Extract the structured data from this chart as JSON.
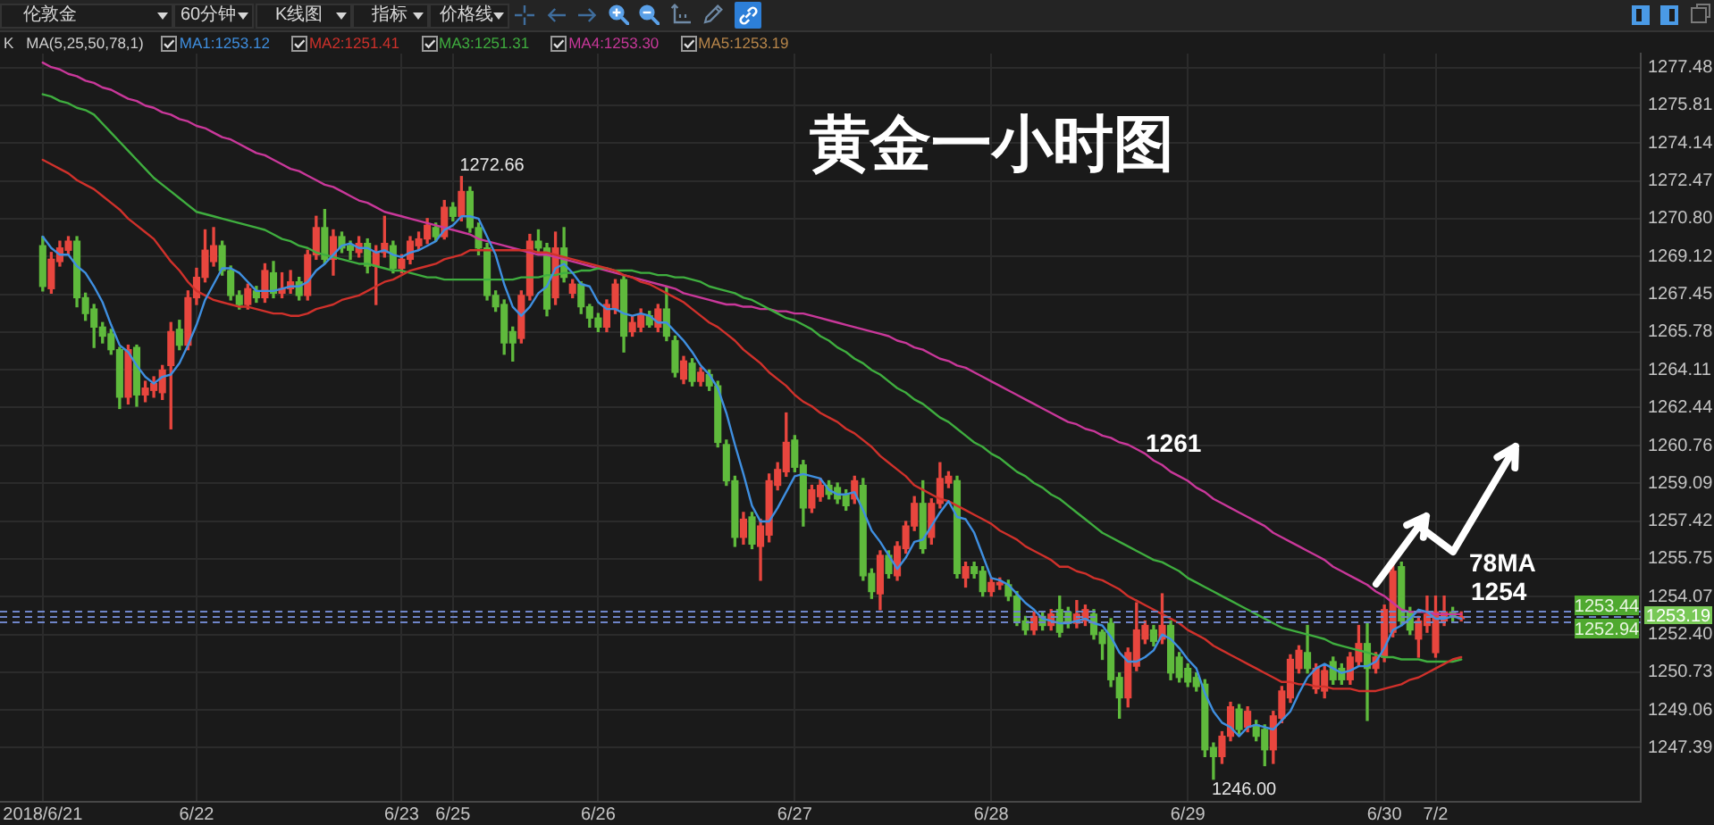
{
  "chart_data": {
    "type": "candlestick",
    "title": "黄金一小时图",
    "categories": [
      "2018/6/21",
      null,
      null,
      null,
      null,
      null,
      null,
      null,
      null,
      null,
      null,
      null,
      null,
      null,
      null,
      null,
      null,
      null,
      "6/22",
      null,
      null,
      null,
      null,
      null,
      null,
      null,
      null,
      null,
      null,
      null,
      null,
      null,
      null,
      null,
      null,
      null,
      null,
      null,
      null,
      null,
      null,
      null,
      "6/23",
      null,
      null,
      null,
      null,
      null,
      "6/25",
      null,
      null,
      null,
      null,
      null,
      null,
      null,
      null,
      null,
      null,
      null,
      null,
      null,
      null,
      null,
      null,
      "6/26",
      null,
      null,
      null,
      null,
      null,
      null,
      null,
      null,
      null,
      null,
      null,
      null,
      null,
      null,
      null,
      null,
      null,
      null,
      null,
      null,
      null,
      null,
      "6/27",
      null,
      null,
      null,
      null,
      null,
      null,
      null,
      null,
      null,
      null,
      null,
      null,
      null,
      null,
      null,
      null,
      null,
      null,
      null,
      null,
      null,
      null,
      "6/28",
      null,
      null,
      null,
      null,
      null,
      null,
      null,
      null,
      null,
      null,
      null,
      null,
      null,
      null,
      null,
      null,
      null,
      null,
      null,
      null,
      null,
      null,
      "6/29",
      null,
      null,
      null,
      null,
      null,
      null,
      null,
      null,
      null,
      null,
      null,
      null,
      null,
      null,
      null,
      null,
      null,
      null,
      null,
      null,
      null,
      null,
      "6/30",
      null,
      null,
      null,
      null,
      null,
      "7/2",
      null,
      null,
      null
    ],
    "ohlc": [
      [
        1269.6,
        1270.0,
        1267.6,
        1267.8
      ],
      [
        1267.7,
        1269.3,
        1267.5,
        1269.0
      ],
      [
        1268.9,
        1269.8,
        1268.7,
        1269.5
      ],
      [
        1269.4,
        1270.0,
        1269.2,
        1269.8
      ],
      [
        1269.8,
        1270.0,
        1266.9,
        1267.3
      ],
      [
        1267.3,
        1267.5,
        1266.3,
        1266.6
      ],
      [
        1266.8,
        1267.0,
        1265.1,
        1266.0
      ],
      [
        1266.0,
        1266.2,
        1265.3,
        1265.6
      ],
      [
        1265.7,
        1265.9,
        1264.8,
        1265.0
      ],
      [
        1265.0,
        1265.1,
        1262.4,
        1262.9
      ],
      [
        1262.9,
        1265.2,
        1262.6,
        1265.0
      ],
      [
        1265.1,
        1265.2,
        1262.5,
        1263.0
      ],
      [
        1263.0,
        1263.6,
        1262.7,
        1263.3
      ],
      [
        1263.2,
        1263.8,
        1262.9,
        1263.5
      ],
      [
        1263.1,
        1264.3,
        1262.8,
        1264.1
      ],
      [
        1264.3,
        1266.2,
        1261.5,
        1265.8
      ],
      [
        1265.9,
        1266.3,
        1265.0,
        1265.2
      ],
      [
        1265.2,
        1267.6,
        1265.0,
        1267.3
      ],
      [
        1267.3,
        1268.6,
        1267.0,
        1268.2
      ],
      [
        1268.2,
        1270.3,
        1268.0,
        1269.4
      ],
      [
        1268.9,
        1270.4,
        1268.7,
        1269.6
      ],
      [
        1269.6,
        1269.8,
        1268.3,
        1268.5
      ],
      [
        1268.5,
        1268.7,
        1267.2,
        1267.4
      ],
      [
        1267.4,
        1267.6,
        1266.8,
        1267.0
      ],
      [
        1267.0,
        1267.9,
        1266.8,
        1267.7
      ],
      [
        1267.6,
        1267.8,
        1267.1,
        1267.3
      ],
      [
        1267.3,
        1268.8,
        1267.1,
        1268.5
      ],
      [
        1268.4,
        1268.9,
        1267.3,
        1267.5
      ],
      [
        1267.5,
        1268.4,
        1267.3,
        1267.7
      ],
      [
        1267.7,
        1268.5,
        1267.5,
        1268.0
      ],
      [
        1268.0,
        1268.2,
        1267.2,
        1267.4
      ],
      [
        1267.4,
        1269.4,
        1267.2,
        1269.2
      ],
      [
        1269.2,
        1270.9,
        1269.0,
        1270.4
      ],
      [
        1270.4,
        1271.2,
        1268.8,
        1269.0
      ],
      [
        1269.0,
        1270.3,
        1268.3,
        1270.0
      ],
      [
        1270.0,
        1270.2,
        1269.3,
        1269.5
      ],
      [
        1269.6,
        1269.8,
        1269.0,
        1269.4
      ],
      [
        1269.3,
        1270.0,
        1269.1,
        1269.7
      ],
      [
        1269.7,
        1269.9,
        1268.4,
        1268.7
      ],
      [
        1268.7,
        1269.6,
        1267.0,
        1269.3
      ],
      [
        1269.3,
        1270.9,
        1269.1,
        1269.7
      ],
      [
        1269.6,
        1269.8,
        1268.4,
        1268.6
      ],
      [
        1268.6,
        1269.2,
        1268.4,
        1269.0
      ],
      [
        1269.0,
        1270.0,
        1268.8,
        1269.8
      ],
      [
        1269.6,
        1270.2,
        1269.4,
        1269.9
      ],
      [
        1269.9,
        1270.8,
        1269.7,
        1270.5
      ],
      [
        1270.4,
        1270.6,
        1269.8,
        1270.0
      ],
      [
        1270.0,
        1271.6,
        1269.9,
        1271.3
      ],
      [
        1271.3,
        1271.5,
        1270.7,
        1270.9
      ],
      [
        1270.9,
        1272.66,
        1270.7,
        1272.0
      ],
      [
        1272.0,
        1272.2,
        1270.2,
        1270.4
      ],
      [
        1270.4,
        1270.6,
        1269.2,
        1269.5
      ],
      [
        1269.5,
        1269.7,
        1267.2,
        1267.4
      ],
      [
        1267.4,
        1267.6,
        1266.7,
        1266.9
      ],
      [
        1267.0,
        1267.2,
        1264.8,
        1265.3
      ],
      [
        1265.8,
        1266.0,
        1264.5,
        1265.3
      ],
      [
        1265.5,
        1267.6,
        1265.3,
        1267.4
      ],
      [
        1267.4,
        1270.1,
        1267.2,
        1269.8
      ],
      [
        1269.8,
        1270.3,
        1269.2,
        1269.5
      ],
      [
        1269.5,
        1269.7,
        1266.5,
        1266.8
      ],
      [
        1267.3,
        1270.2,
        1267.0,
        1269.5
      ],
      [
        1269.5,
        1270.4,
        1268.0,
        1268.2
      ],
      [
        1267.5,
        1268.1,
        1267.3,
        1267.9
      ],
      [
        1267.9,
        1268.0,
        1266.6,
        1266.9
      ],
      [
        1266.9,
        1267.0,
        1266.0,
        1266.4
      ],
      [
        1266.4,
        1266.6,
        1265.8,
        1266.0
      ],
      [
        1266.0,
        1267.2,
        1265.8,
        1267.0
      ],
      [
        1266.8,
        1268.1,
        1266.6,
        1267.9
      ],
      [
        1268.1,
        1268.3,
        1264.9,
        1265.6
      ],
      [
        1265.8,
        1266.5,
        1265.6,
        1266.2
      ],
      [
        1266.0,
        1266.8,
        1265.8,
        1266.5
      ],
      [
        1266.5,
        1266.7,
        1266.0,
        1266.1
      ],
      [
        1266.0,
        1267.0,
        1265.8,
        1266.8
      ],
      [
        1266.8,
        1267.8,
        1265.4,
        1265.6
      ],
      [
        1265.4,
        1265.6,
        1263.8,
        1264.0
      ],
      [
        1263.7,
        1264.7,
        1263.5,
        1264.5
      ],
      [
        1264.4,
        1264.6,
        1263.4,
        1263.6
      ],
      [
        1263.6,
        1264.2,
        1263.4,
        1264.0
      ],
      [
        1263.9,
        1264.1,
        1263.2,
        1263.4
      ],
      [
        1263.4,
        1263.6,
        1260.7,
        1260.9
      ],
      [
        1260.8,
        1261.0,
        1259.0,
        1259.2
      ],
      [
        1259.2,
        1259.4,
        1256.3,
        1256.7
      ],
      [
        1256.7,
        1257.8,
        1256.4,
        1257.5
      ],
      [
        1257.6,
        1257.8,
        1256.2,
        1256.4
      ],
      [
        1256.3,
        1257.5,
        1254.8,
        1257.2
      ],
      [
        1256.8,
        1259.5,
        1256.5,
        1259.2
      ],
      [
        1259.0,
        1260.0,
        1258.8,
        1259.7
      ],
      [
        1259.6,
        1262.2,
        1259.4,
        1260.9
      ],
      [
        1261.0,
        1261.2,
        1259.6,
        1259.8
      ],
      [
        1259.9,
        1260.1,
        1257.2,
        1258.0
      ],
      [
        1258.0,
        1259.0,
        1257.8,
        1258.8
      ],
      [
        1258.5,
        1259.3,
        1258.3,
        1259.0
      ],
      [
        1259.0,
        1259.2,
        1258.4,
        1258.6
      ],
      [
        1258.9,
        1259.1,
        1258.2,
        1258.4
      ],
      [
        1258.6,
        1258.8,
        1257.9,
        1258.1
      ],
      [
        1258.4,
        1259.4,
        1258.2,
        1259.2
      ],
      [
        1259.0,
        1259.3,
        1254.8,
        1255.0
      ],
      [
        1255.1,
        1255.3,
        1254.0,
        1254.3
      ],
      [
        1254.2,
        1256.1,
        1253.5,
        1255.9
      ],
      [
        1255.9,
        1256.1,
        1254.9,
        1255.1
      ],
      [
        1255.0,
        1256.5,
        1254.8,
        1256.3
      ],
      [
        1256.2,
        1257.4,
        1256.0,
        1257.2
      ],
      [
        1257.2,
        1258.5,
        1257.0,
        1258.2
      ],
      [
        1258.2,
        1259.2,
        1256.0,
        1256.2
      ],
      [
        1256.7,
        1258.4,
        1256.4,
        1258.2
      ],
      [
        1258.2,
        1260.0,
        1258.0,
        1259.3
      ],
      [
        1259.1,
        1259.6,
        1258.9,
        1259.4
      ],
      [
        1259.2,
        1259.4,
        1254.9,
        1255.1
      ],
      [
        1254.9,
        1255.6,
        1254.5,
        1255.4
      ],
      [
        1255.4,
        1255.6,
        1254.9,
        1255.1
      ],
      [
        1255.2,
        1255.4,
        1254.1,
        1254.3
      ],
      [
        1254.3,
        1254.9,
        1254.1,
        1254.7
      ],
      [
        1254.6,
        1254.9,
        1254.4,
        1254.7
      ],
      [
        1254.6,
        1254.8,
        1253.9,
        1254.1
      ],
      [
        1254.1,
        1254.3,
        1252.8,
        1253.0
      ],
      [
        1253.0,
        1253.2,
        1252.4,
        1252.6
      ],
      [
        1252.6,
        1253.4,
        1252.4,
        1253.2
      ],
      [
        1253.2,
        1253.4,
        1252.6,
        1252.8
      ],
      [
        1252.8,
        1253.5,
        1252.6,
        1253.3
      ],
      [
        1253.5,
        1254.1,
        1252.3,
        1252.5
      ],
      [
        1253.4,
        1253.6,
        1252.7,
        1252.9
      ],
      [
        1252.9,
        1253.9,
        1252.7,
        1253.3
      ],
      [
        1253.0,
        1253.7,
        1252.8,
        1253.5
      ],
      [
        1253.3,
        1253.5,
        1252.2,
        1252.4
      ],
      [
        1252.5,
        1252.6,
        1251.3,
        1252.0
      ],
      [
        1252.9,
        1253.1,
        1250.1,
        1250.4
      ],
      [
        1250.5,
        1250.7,
        1248.7,
        1249.6
      ],
      [
        1249.6,
        1251.8,
        1249.2,
        1251.6
      ],
      [
        1251.0,
        1253.8,
        1250.8,
        1252.6
      ],
      [
        1252.2,
        1253.0,
        1252.0,
        1252.8
      ],
      [
        1252.6,
        1252.8,
        1251.9,
        1252.1
      ],
      [
        1252.2,
        1254.2,
        1252.0,
        1252.8
      ],
      [
        1252.8,
        1253.0,
        1250.4,
        1250.7
      ],
      [
        1251.4,
        1251.6,
        1250.3,
        1250.5
      ],
      [
        1250.9,
        1251.1,
        1250.1,
        1250.3
      ],
      [
        1250.5,
        1250.7,
        1249.9,
        1250.1
      ],
      [
        1250.2,
        1250.4,
        1247.0,
        1247.3
      ],
      [
        1247.4,
        1247.6,
        1246.0,
        1247.0
      ],
      [
        1247.0,
        1248.1,
        1246.7,
        1247.9
      ],
      [
        1247.9,
        1249.4,
        1247.7,
        1249.2
      ],
      [
        1249.1,
        1249.3,
        1248.0,
        1248.2
      ],
      [
        1248.3,
        1249.2,
        1248.1,
        1249.0
      ],
      [
        1248.4,
        1248.6,
        1247.7,
        1247.9
      ],
      [
        1248.2,
        1248.4,
        1246.6,
        1247.3
      ],
      [
        1247.3,
        1249.0,
        1246.7,
        1248.8
      ],
      [
        1248.7,
        1250.1,
        1248.5,
        1249.9
      ],
      [
        1249.6,
        1251.5,
        1249.4,
        1251.3
      ],
      [
        1250.9,
        1251.9,
        1250.7,
        1251.7
      ],
      [
        1251.6,
        1252.8,
        1250.7,
        1250.9
      ],
      [
        1250.0,
        1251.1,
        1249.8,
        1250.9
      ],
      [
        1249.9,
        1251.0,
        1249.6,
        1250.8
      ],
      [
        1251.2,
        1251.4,
        1250.2,
        1250.4
      ],
      [
        1250.9,
        1251.1,
        1250.2,
        1250.4
      ],
      [
        1250.4,
        1251.6,
        1250.2,
        1251.4
      ],
      [
        1251.2,
        1252.8,
        1251.0,
        1252.0
      ],
      [
        1252.0,
        1252.9,
        1248.6,
        1250.9
      ],
      [
        1250.9,
        1251.6,
        1250.7,
        1251.4
      ],
      [
        1251.4,
        1253.7,
        1251.2,
        1253.5
      ],
      [
        1252.5,
        1255.6,
        1252.3,
        1255.2
      ],
      [
        1255.4,
        1255.6,
        1252.8,
        1253.0
      ],
      [
        1253.4,
        1253.6,
        1252.4,
        1252.6
      ],
      [
        1252.2,
        1253.2,
        1251.4,
        1253.0
      ],
      [
        1252.8,
        1254.1,
        1252.5,
        1253.3
      ],
      [
        1251.6,
        1254.1,
        1251.4,
        1253.4
      ],
      [
        1253.0,
        1254.1,
        1252.8,
        1253.4
      ],
      [
        1253.4,
        1253.6,
        1253.0,
        1253.2
      ],
      [
        1253.1,
        1253.4,
        1253.0,
        1253.19
      ]
    ],
    "colors": [
      "#5fba3c",
      "#e8463e",
      "#e8463e",
      "#e8463e",
      "#5fba3c",
      "#5fba3c",
      "#5fba3c",
      "#5fba3c",
      "#5fba3c",
      "#5fba3c",
      "#e8463e",
      "#5fba3c",
      "#e8463e",
      "#e8463e",
      "#e8463e",
      "#e8463e",
      "#5fba3c",
      "#e8463e",
      "#e8463e",
      "#e8463e",
      "#e8463e",
      "#5fba3c",
      "#5fba3c",
      "#5fba3c",
      "#e8463e",
      "#5fba3c",
      "#e8463e",
      "#5fba3c",
      "#e8463e",
      "#e8463e",
      "#5fba3c",
      "#e8463e",
      "#e8463e",
      "#5fba3c",
      "#e8463e",
      "#5fba3c",
      "#5fba3c",
      "#e8463e",
      "#5fba3c",
      "#e8463e",
      "#e8463e",
      "#5fba3c",
      "#e8463e",
      "#e8463e",
      "#e8463e",
      "#e8463e",
      "#5fba3c",
      "#e8463e",
      "#5fba3c",
      "#e8463e",
      "#5fba3c",
      "#5fba3c",
      "#5fba3c",
      "#5fba3c",
      "#5fba3c",
      "#5fba3c",
      "#e8463e",
      "#e8463e",
      "#5fba3c",
      "#5fba3c",
      "#e8463e",
      "#5fba3c",
      "#e8463e",
      "#5fba3c",
      "#5fba3c",
      "#5fba3c",
      "#e8463e",
      "#e8463e",
      "#5fba3c",
      "#e8463e",
      "#e8463e",
      "#5fba3c",
      "#e8463e",
      "#5fba3c",
      "#5fba3c",
      "#e8463e",
      "#5fba3c",
      "#e8463e",
      "#5fba3c",
      "#5fba3c",
      "#5fba3c",
      "#5fba3c",
      "#e8463e",
      "#5fba3c",
      "#e8463e",
      "#e8463e",
      "#e8463e",
      "#e8463e",
      "#5fba3c",
      "#5fba3c",
      "#e8463e",
      "#e8463e",
      "#5fba3c",
      "#5fba3c",
      "#5fba3c",
      "#e8463e",
      "#5fba3c",
      "#5fba3c",
      "#e8463e",
      "#5fba3c",
      "#e8463e",
      "#e8463e",
      "#e8463e",
      "#5fba3c",
      "#e8463e",
      "#e8463e",
      "#e8463e",
      "#5fba3c",
      "#e8463e",
      "#5fba3c",
      "#5fba3c",
      "#e8463e",
      "#e8463e",
      "#5fba3c",
      "#5fba3c",
      "#5fba3c",
      "#e8463e",
      "#5fba3c",
      "#e8463e",
      "#5fba3c",
      "#5fba3c",
      "#e8463e",
      "#e8463e",
      "#5fba3c",
      "#5fba3c",
      "#5fba3c",
      "#5fba3c",
      "#e8463e",
      "#e8463e",
      "#e8463e",
      "#5fba3c",
      "#e8463e",
      "#5fba3c",
      "#5fba3c",
      "#5fba3c",
      "#5fba3c",
      "#5fba3c",
      "#5fba3c",
      "#e8463e",
      "#e8463e",
      "#5fba3c",
      "#e8463e",
      "#5fba3c",
      "#5fba3c",
      "#e8463e",
      "#e8463e",
      "#e8463e",
      "#e8463e",
      "#5fba3c",
      "#e8463e",
      "#e8463e",
      "#5fba3c",
      "#5fba3c",
      "#e8463e",
      "#e8463e",
      "#5fba3c",
      "#e8463e",
      "#e8463e",
      "#e8463e",
      "#5fba3c",
      "#5fba3c",
      "#e8463e",
      "#e8463e",
      "#e8463e",
      "#e8463e",
      "#5fba3c",
      "#e8463e"
    ],
    "series": [
      {
        "name": "MA1:1253.12",
        "type": "line",
        "color": "#3f8fe0",
        "values": [
          1270.0,
          1269.5,
          1269.2,
          1269.2,
          1268.7,
          1268.4,
          1267.8,
          1267.1,
          1266.1,
          1265.2,
          1264.9,
          1264.3,
          1263.8,
          1263.5,
          1263.8,
          1263.9,
          1264.4,
          1265.2,
          1266.1,
          1267.2,
          1267.9,
          1268.6,
          1268.6,
          1268.4,
          1268.0,
          1267.6,
          1267.6,
          1267.6,
          1267.7,
          1267.8,
          1267.8,
          1268.0,
          1268.5,
          1268.8,
          1269.2,
          1269.6,
          1269.7,
          1269.5,
          1269.5,
          1269.3,
          1269.4,
          1269.2,
          1269.1,
          1269.3,
          1269.4,
          1269.6,
          1269.8,
          1270.3,
          1270.5,
          1270.9,
          1270.9,
          1270.8,
          1270.0,
          1269.2,
          1267.9,
          1266.9,
          1266.5,
          1266.9,
          1267.5,
          1267.8,
          1268.6,
          1268.8,
          1268.4,
          1267.9,
          1267.8,
          1267.1,
          1266.8,
          1266.8,
          1266.6,
          1266.5,
          1266.6,
          1266.5,
          1266.2,
          1266.2,
          1265.8,
          1265.4,
          1264.9,
          1264.3,
          1263.9,
          1263.3,
          1262.2,
          1260.8,
          1259.5,
          1258.1,
          1257.4,
          1257.4,
          1258.0,
          1258.7,
          1259.4,
          1259.5,
          1259.4,
          1259.3,
          1258.8,
          1258.6,
          1258.6,
          1258.7,
          1257.9,
          1257.0,
          1256.5,
          1255.9,
          1255.3,
          1255.8,
          1256.5,
          1256.6,
          1257.2,
          1257.8,
          1258.3,
          1257.6,
          1257.5,
          1256.9,
          1255.9,
          1254.9,
          1254.8,
          1254.6,
          1254.2,
          1253.8,
          1253.5,
          1253.1,
          1253.0,
          1252.9,
          1252.9,
          1253.0,
          1253.1,
          1252.9,
          1252.8,
          1252.3,
          1251.6,
          1251.2,
          1251.2,
          1251.4,
          1251.7,
          1252.4,
          1252.2,
          1251.8,
          1251.3,
          1250.9,
          1249.8,
          1249.0,
          1248.5,
          1248.3,
          1247.9,
          1248.3,
          1248.4,
          1248.3,
          1248.2,
          1248.6,
          1249.0,
          1249.8,
          1250.5,
          1250.9,
          1251.1,
          1250.9,
          1250.7,
          1250.8,
          1251.0,
          1251.0,
          1251.2,
          1251.8,
          1252.6,
          1252.8,
          1253.1,
          1253.5,
          1253.4,
          1253.1,
          1253.1,
          1253.2,
          1253.1
        ]
      },
      {
        "name": "MA2:1251.41",
        "type": "line",
        "color": "#d0312b",
        "values": [
          1273.4,
          1273.2,
          1273.0,
          1272.8,
          1272.5,
          1272.3,
          1272.1,
          1271.8,
          1271.5,
          1271.2,
          1270.8,
          1270.5,
          1270.2,
          1269.9,
          1269.4,
          1268.9,
          1268.5,
          1268.0,
          1267.6,
          1267.4,
          1267.2,
          1267.1,
          1267.0,
          1266.9,
          1266.9,
          1266.8,
          1266.7,
          1266.6,
          1266.6,
          1266.5,
          1266.5,
          1266.6,
          1266.8,
          1266.9,
          1267.0,
          1267.2,
          1267.3,
          1267.4,
          1267.6,
          1267.8,
          1268.0,
          1268.1,
          1268.3,
          1268.5,
          1268.6,
          1268.7,
          1268.8,
          1269.0,
          1269.1,
          1269.2,
          1269.4,
          1269.4,
          1269.4,
          1269.4,
          1269.4,
          1269.4,
          1269.4,
          1269.4,
          1269.3,
          1269.3,
          1269.2,
          1269.1,
          1269.0,
          1268.9,
          1268.8,
          1268.7,
          1268.6,
          1268.5,
          1268.3,
          1268.2,
          1268.0,
          1267.9,
          1267.7,
          1267.5,
          1267.3,
          1267.1,
          1266.8,
          1266.5,
          1266.2,
          1266.0,
          1265.7,
          1265.4,
          1265.0,
          1264.7,
          1264.4,
          1264.0,
          1263.7,
          1263.4,
          1263.0,
          1262.7,
          1262.5,
          1262.2,
          1262.0,
          1261.8,
          1261.5,
          1261.3,
          1261.0,
          1260.7,
          1260.3,
          1260.0,
          1259.7,
          1259.4,
          1259.0,
          1258.8,
          1258.6,
          1258.4,
          1258.3,
          1258.1,
          1257.9,
          1257.7,
          1257.5,
          1257.3,
          1257.0,
          1256.8,
          1256.6,
          1256.3,
          1256.1,
          1255.9,
          1255.7,
          1255.4,
          1255.4,
          1255.2,
          1255.1,
          1254.9,
          1254.8,
          1254.6,
          1254.4,
          1254.1,
          1253.9,
          1253.7,
          1253.5,
          1253.3,
          1253.1,
          1252.9,
          1252.6,
          1252.4,
          1252.2,
          1251.9,
          1251.7,
          1251.5,
          1251.3,
          1251.1,
          1250.9,
          1250.7,
          1250.5,
          1250.3,
          1250.3,
          1250.2,
          1250.2,
          1250.1,
          1250.1,
          1250.0,
          1250.0,
          1250.0,
          1249.9,
          1249.9,
          1249.9,
          1250.0,
          1250.1,
          1250.2,
          1250.4,
          1250.5,
          1250.7,
          1250.9,
          1251.1,
          1251.3,
          1251.4
        ]
      },
      {
        "name": "MA3:1251.31",
        "type": "line",
        "color": "#3fae3f",
        "values": [
          1276.3,
          1276.2,
          1276.0,
          1275.9,
          1275.7,
          1275.6,
          1275.4,
          1275.0,
          1274.6,
          1274.2,
          1273.8,
          1273.4,
          1273.0,
          1272.6,
          1272.3,
          1272.0,
          1271.7,
          1271.4,
          1271.1,
          1271.0,
          1270.9,
          1270.8,
          1270.7,
          1270.6,
          1270.5,
          1270.4,
          1270.3,
          1270.1,
          1269.9,
          1269.8,
          1269.6,
          1269.5,
          1269.3,
          1269.2,
          1269.1,
          1269.0,
          1268.9,
          1268.8,
          1268.8,
          1268.7,
          1268.6,
          1268.5,
          1268.5,
          1268.4,
          1268.3,
          1268.2,
          1268.2,
          1268.1,
          1268.1,
          1268.1,
          1268.1,
          1268.1,
          1268.1,
          1268.1,
          1268.1,
          1268.1,
          1268.2,
          1268.2,
          1268.2,
          1268.3,
          1268.3,
          1268.4,
          1268.4,
          1268.5,
          1268.5,
          1268.6,
          1268.6,
          1268.5,
          1268.5,
          1268.5,
          1268.4,
          1268.4,
          1268.3,
          1268.3,
          1268.2,
          1268.2,
          1268.1,
          1268.0,
          1267.8,
          1267.7,
          1267.6,
          1267.5,
          1267.3,
          1267.2,
          1267.0,
          1266.8,
          1266.6,
          1266.4,
          1266.3,
          1266.1,
          1265.9,
          1265.6,
          1265.4,
          1265.1,
          1264.9,
          1264.6,
          1264.4,
          1264.1,
          1263.9,
          1263.6,
          1263.3,
          1263.1,
          1262.8,
          1262.6,
          1262.3,
          1262.0,
          1261.8,
          1261.5,
          1261.2,
          1260.9,
          1260.7,
          1260.4,
          1260.2,
          1259.9,
          1259.6,
          1259.4,
          1259.1,
          1258.9,
          1258.6,
          1258.4,
          1258.1,
          1257.8,
          1257.5,
          1257.2,
          1256.9,
          1256.7,
          1256.5,
          1256.3,
          1256.1,
          1255.9,
          1255.7,
          1255.6,
          1255.4,
          1255.2,
          1254.9,
          1254.7,
          1254.5,
          1254.3,
          1254.1,
          1253.9,
          1253.7,
          1253.5,
          1253.3,
          1253.1,
          1252.9,
          1252.7,
          1252.6,
          1252.5,
          1252.4,
          1252.3,
          1252.2,
          1252.0,
          1251.9,
          1251.8,
          1251.7,
          1251.6,
          1251.5,
          1251.4,
          1251.4,
          1251.3,
          1251.3,
          1251.3,
          1251.2,
          1251.2,
          1251.2,
          1251.2,
          1251.3
        ]
      },
      {
        "name": "MA4:1253.30",
        "type": "line",
        "color": "#c9389a",
        "values": [
          1277.7,
          1277.5,
          1277.4,
          1277.2,
          1277.1,
          1276.9,
          1276.8,
          1276.6,
          1276.5,
          1276.3,
          1276.1,
          1276.0,
          1275.8,
          1275.7,
          1275.5,
          1275.4,
          1275.2,
          1275.1,
          1274.9,
          1274.8,
          1274.6,
          1274.4,
          1274.3,
          1274.1,
          1273.9,
          1273.7,
          1273.6,
          1273.4,
          1273.2,
          1273.0,
          1272.9,
          1272.7,
          1272.5,
          1272.3,
          1272.2,
          1272.0,
          1271.8,
          1271.6,
          1271.5,
          1271.3,
          1271.1,
          1271.0,
          1270.9,
          1270.8,
          1270.7,
          1270.6,
          1270.5,
          1270.4,
          1270.3,
          1270.2,
          1270.1,
          1269.9,
          1269.8,
          1269.7,
          1269.6,
          1269.5,
          1269.4,
          1269.3,
          1269.2,
          1269.2,
          1269.1,
          1269.0,
          1268.9,
          1268.8,
          1268.7,
          1268.6,
          1268.5,
          1268.4,
          1268.3,
          1268.2,
          1268.1,
          1268.0,
          1267.9,
          1267.8,
          1267.7,
          1267.5,
          1267.4,
          1267.3,
          1267.2,
          1267.1,
          1267.0,
          1267.0,
          1266.9,
          1266.9,
          1266.8,
          1266.8,
          1266.7,
          1266.7,
          1266.6,
          1266.6,
          1266.5,
          1266.4,
          1266.3,
          1266.2,
          1266.1,
          1266.0,
          1265.9,
          1265.8,
          1265.7,
          1265.6,
          1265.4,
          1265.3,
          1265.1,
          1265.0,
          1264.8,
          1264.6,
          1264.5,
          1264.3,
          1264.2,
          1264.0,
          1263.8,
          1263.6,
          1263.4,
          1263.2,
          1263.0,
          1262.8,
          1262.6,
          1262.4,
          1262.2,
          1262.0,
          1261.8,
          1261.7,
          1261.5,
          1261.4,
          1261.2,
          1261.1,
          1260.9,
          1260.8,
          1260.6,
          1260.4,
          1260.1,
          1259.9,
          1259.6,
          1259.4,
          1259.2,
          1258.9,
          1258.7,
          1258.4,
          1258.2,
          1258.0,
          1257.8,
          1257.6,
          1257.4,
          1257.2,
          1256.9,
          1256.7,
          1256.5,
          1256.3,
          1256.1,
          1255.9,
          1255.7,
          1255.4,
          1255.2,
          1255.0,
          1254.8,
          1254.6,
          1254.3,
          1254.1,
          1253.8,
          1253.5,
          1253.4,
          1253.4,
          1253.4,
          1253.3,
          1253.3,
          1253.3,
          1253.3
        ]
      }
    ],
    "ylim": [
      1245.0,
      1278.1
    ],
    "yticks": [
      1277.48,
      1275.81,
      1274.14,
      1272.47,
      {
        "value": 1270.8,
        "label": "1270.80"
      },
      1269.12,
      1267.45,
      1265.78,
      1264.11,
      1262.44,
      1260.76,
      1259.09,
      1257.42,
      1255.75,
      1254.07,
      {
        "value": 1252.4,
        "label": "1252.40"
      },
      1250.73,
      1249.06,
      1247.39
    ],
    "grid": true,
    "legend": "top",
    "marker": "none",
    "ref_lines": [
      {
        "axis": "y",
        "value": 1253.44,
        "label": "1253.44",
        "color": "#6f85c8",
        "line_style": "dashed"
      },
      {
        "axis": "y",
        "value": 1253.19,
        "label": "1253.19",
        "color": "#6f85c8",
        "line_style": "dashed"
      },
      {
        "axis": "y",
        "value": 1252.94,
        "label": "1252.94",
        "color": "#6f85c8",
        "line_style": "dashed"
      }
    ],
    "annotations": [
      "伦敦金",
      "60分钟",
      "K线图",
      "指标",
      "价格线",
      "K",
      "MA(5,25,50,78,1)",
      "MA5:1253.19",
      "1272.66",
      "1246.00",
      "1261",
      "78MA",
      "1254"
    ]
  }
}
